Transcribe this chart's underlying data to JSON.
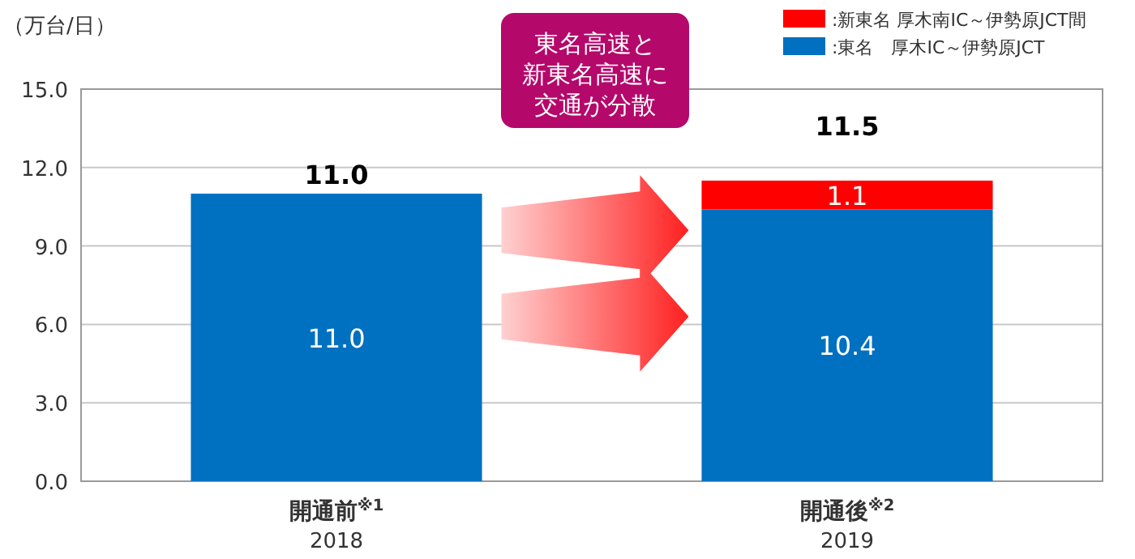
{
  "chart_data": {
    "type": "bar",
    "stacked": true,
    "ylabel": "（万台/日）",
    "categories": [
      "開通前$^{※1}$\n2018",
      "開通後$^{※2}$\n2019"
    ],
    "series": [
      {
        "name": ":東名　厚木IC～伊勢原JCT",
        "color": "#0070c0",
        "values": [
          11.0,
          10.4
        ],
        "value_labels": [
          "11.0",
          "10.4"
        ]
      },
      {
        "name": ":新東名 厚木南IC～伊勢原JCT間",
        "color": "#ff0000",
        "values": [
          null,
          1.1
        ],
        "value_labels": [
          null,
          "1.1"
        ]
      }
    ],
    "totals": [
      "11.0",
      "11.5"
    ],
    "ylim": [
      0,
      15
    ],
    "yticks": [
      {
        "value": 0,
        "label": "0.0"
      },
      {
        "value": 3,
        "label": "3.0"
      },
      {
        "value": 6,
        "label": "6.0"
      },
      {
        "value": 9,
        "label": "9.0"
      },
      {
        "value": 12,
        "label": "12.0"
      },
      {
        "value": 15,
        "label": "15.0"
      }
    ],
    "grid": "y",
    "legend": "top right",
    "annotations": [
      "東名高速と",
      "新東名高速に",
      "交通が分散"
    ]
  }
}
